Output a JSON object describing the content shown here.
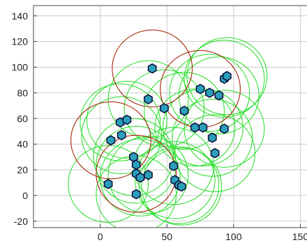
{
  "chart_data": {
    "type": "scatter",
    "xlim": [
      -50,
      155
    ],
    "ylim": [
      -25,
      148
    ],
    "grid": true,
    "xticks": [
      0,
      50,
      100,
      150
    ],
    "yticks": [
      -20,
      0,
      20,
      40,
      60,
      80,
      100,
      120,
      140
    ],
    "xtick_labels": [
      "0",
      "50",
      "100",
      "150"
    ],
    "ytick_labels": [
      "-20",
      "0",
      "20",
      "40",
      "60",
      "80",
      "100",
      "120",
      "140"
    ],
    "points": [
      [
        39,
        99
      ],
      [
        93,
        91
      ],
      [
        95,
        93
      ],
      [
        75,
        83
      ],
      [
        82,
        80
      ],
      [
        89,
        78
      ],
      [
        36,
        75
      ],
      [
        48,
        68
      ],
      [
        63,
        66
      ],
      [
        71,
        53
      ],
      [
        77,
        53
      ],
      [
        93,
        52
      ],
      [
        15,
        57
      ],
      [
        20,
        59
      ],
      [
        16,
        47
      ],
      [
        8,
        43
      ],
      [
        84,
        45
      ],
      [
        86,
        33
      ],
      [
        25,
        30
      ],
      [
        27,
        24
      ],
      [
        55,
        23
      ],
      [
        27,
        17
      ],
      [
        36,
        16
      ],
      [
        30,
        14
      ],
      [
        56,
        12
      ],
      [
        59,
        8
      ],
      [
        61,
        7
      ],
      [
        6,
        9
      ],
      [
        27,
        1
      ]
    ],
    "circle_radius": 30,
    "red_circle_centers": [
      [
        39,
        99
      ],
      [
        75,
        83
      ],
      [
        8,
        43
      ],
      [
        27,
        17
      ]
    ],
    "colors": {
      "point_fill": "#2a9fba",
      "point_edge": "#0a0a3a",
      "green_circle": "#22dd22",
      "red_circle": "#c01818",
      "grid": "#cccccc",
      "axis": "#444444"
    }
  }
}
